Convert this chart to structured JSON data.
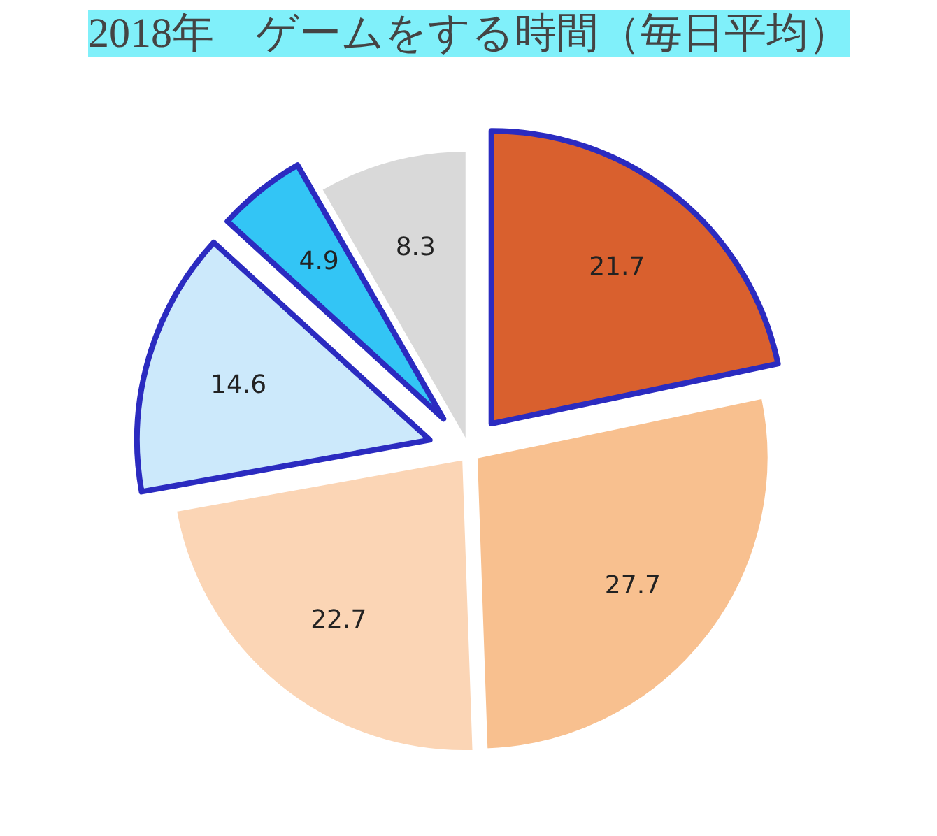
{
  "chart_data": {
    "type": "pie",
    "title": "2018年　ゲームをする時間（毎日平均）",
    "categories": [
      null,
      null,
      null,
      null,
      null,
      null
    ],
    "values": [
      21.7,
      27.7,
      22.7,
      14.6,
      4.9,
      8.3
    ],
    "colors": [
      "#d9602e",
      "#f8c08f",
      "#fbd5b5",
      "#cce9fb",
      "#33c5f5",
      "#d9d9d9"
    ],
    "data_labels": true
  }
}
